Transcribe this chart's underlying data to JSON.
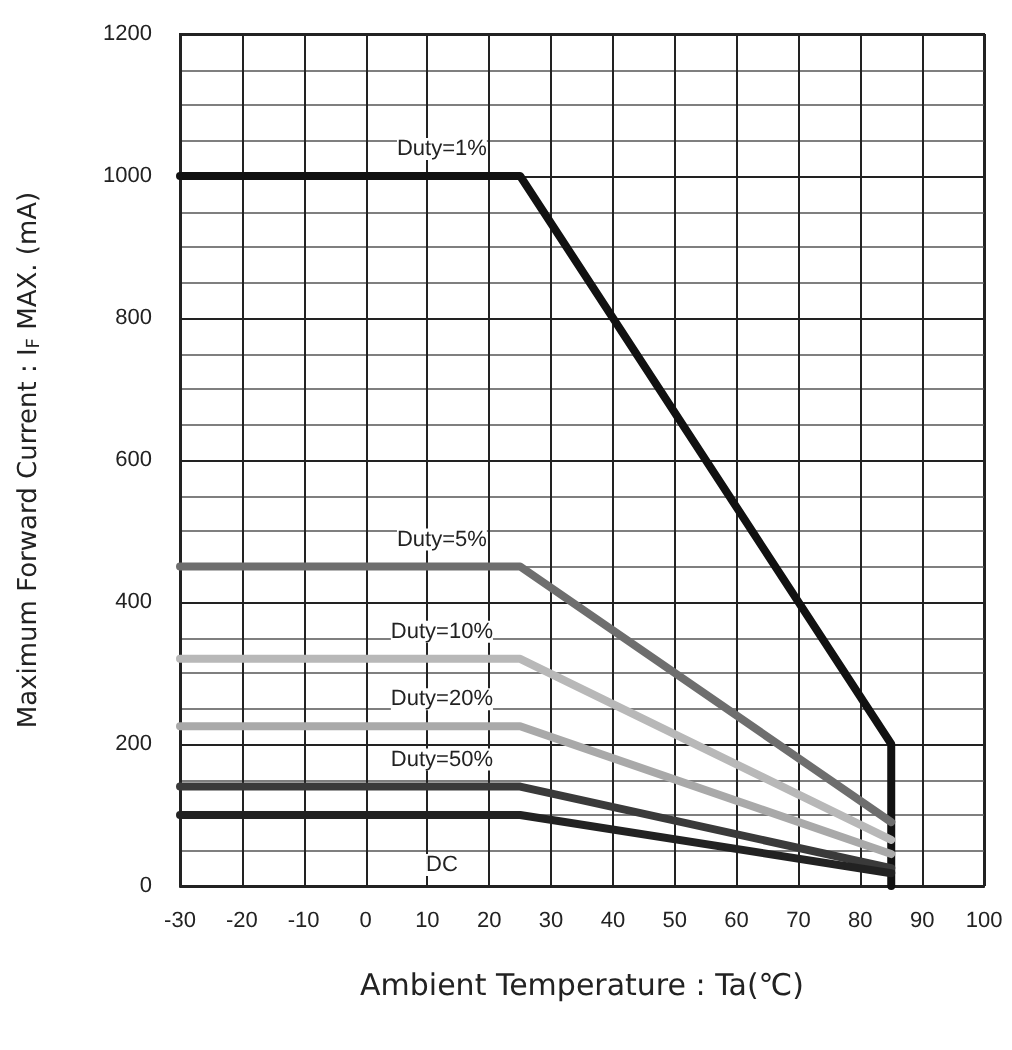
{
  "chart_data": {
    "type": "line",
    "xlabel": "Ambient Temperature : Ta(℃)",
    "ylabel": "Maximum Forward Current : I$_{F}$ MAX. (mA)",
    "xlim": [
      -30,
      100
    ],
    "xticks": [
      -30,
      -20,
      -10,
      0,
      10,
      20,
      30,
      40,
      50,
      60,
      70,
      80,
      90,
      100
    ],
    "ylim": [
      0,
      1200
    ],
    "yticks": [
      0,
      200,
      400,
      600,
      800,
      1000,
      1200
    ],
    "grid": true,
    "legend": false,
    "marker": "none",
    "line_style": "solid",
    "series": [
      {
        "name": "Duty=1%",
        "color": "#111111",
        "x": [
          -30,
          25,
          85,
          85
        ],
        "values": [
          1000,
          1000,
          200,
          0
        ]
      },
      {
        "name": "Duty=5%",
        "color": "#6e6e6e",
        "x": [
          -30,
          25,
          85
        ],
        "values": [
          450,
          450,
          90
        ]
      },
      {
        "name": "Duty=10%",
        "color": "#b8b8b8",
        "x": [
          -30,
          25,
          85
        ],
        "values": [
          320,
          320,
          65
        ]
      },
      {
        "name": "Duty=20%",
        "color": "#a9a9a9",
        "x": [
          -30,
          25,
          85
        ],
        "values": [
          225,
          225,
          45
        ]
      },
      {
        "name": "Duty=50%",
        "color": "#3a3a3a",
        "x": [
          -30,
          25,
          85
        ],
        "values": [
          140,
          140,
          25
        ]
      },
      {
        "name": "DC",
        "color": "#222222",
        "x": [
          -30,
          25,
          85
        ],
        "values": [
          100,
          100,
          18
        ]
      }
    ]
  }
}
